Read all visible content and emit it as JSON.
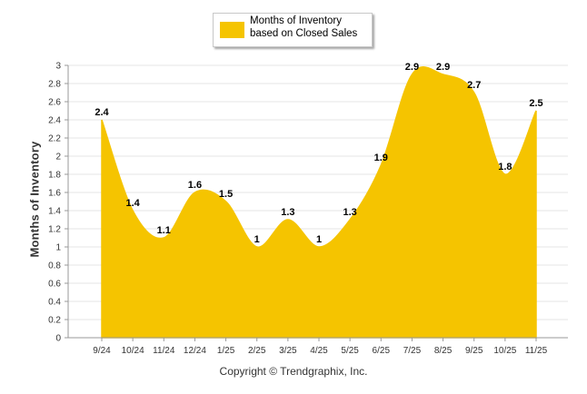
{
  "chart_data": {
    "type": "area",
    "title": "",
    "xlabel": "",
    "ylabel": "Months of Inventory",
    "categories": [
      "9/24",
      "10/24",
      "11/24",
      "12/24",
      "1/25",
      "2/25",
      "3/25",
      "4/25",
      "5/25",
      "6/25",
      "7/25",
      "8/25",
      "9/25",
      "10/25",
      "11/25"
    ],
    "series": [
      {
        "name": "Months of Inventory based on Closed Sales",
        "values": [
          2.4,
          1.4,
          1.1,
          1.6,
          1.5,
          1,
          1.3,
          1,
          1.3,
          1.9,
          2.9,
          2.9,
          2.7,
          1.8,
          2.5
        ]
      }
    ],
    "ylim": [
      0,
      3
    ],
    "yticks": [
      "0",
      "0.2",
      "0.4",
      "0.6",
      "0.8",
      "1",
      "1.2",
      "1.4",
      "1.6",
      "1.8",
      "2",
      "2.2",
      "2.4",
      "2.6",
      "2.8",
      "3"
    ],
    "grid": true,
    "legend_position": "top-center",
    "colors": {
      "fill": "#f5c400",
      "stroke": "#f5c400",
      "grid": "#e6e6e6",
      "axis": "#999999"
    }
  },
  "legend": {
    "label": "Months of Inventory based on Closed Sales"
  },
  "footer": {
    "copyright": "Copyright © Trendgraphix, Inc."
  }
}
